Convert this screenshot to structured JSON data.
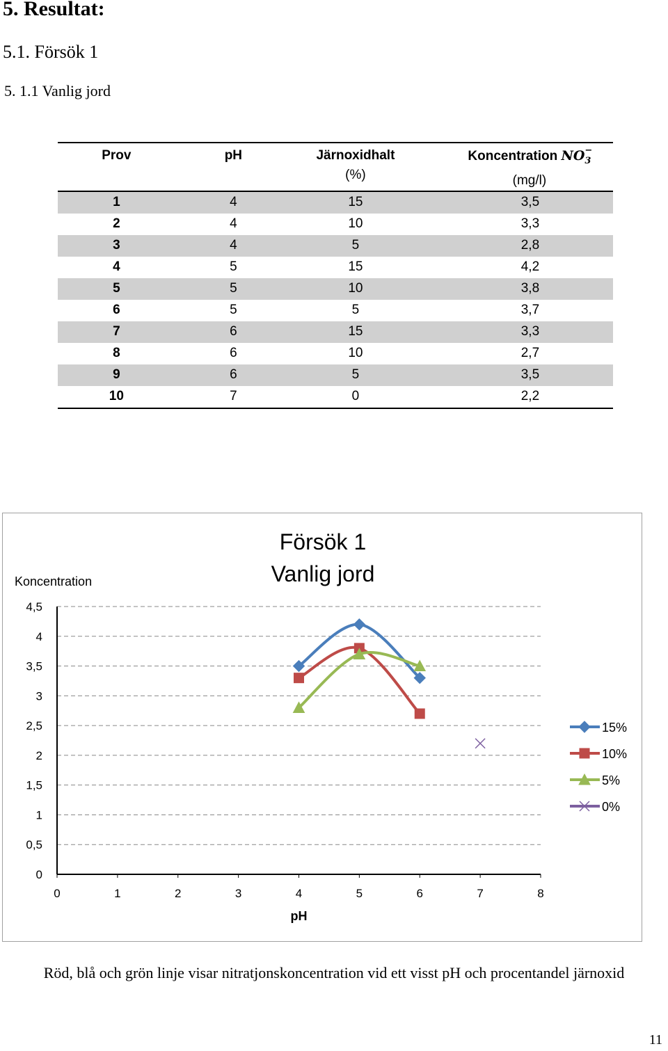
{
  "headings": {
    "h1": "5. Resultat:",
    "h2": "5.1. Försök 1",
    "h3": "5. 1.1 Vanlig jord"
  },
  "table": {
    "headers": [
      "Prov",
      "pH",
      "Järnoxidhalt",
      "Koncentration"
    ],
    "header_units": [
      "",
      "",
      "(%)",
      "(mg/l)"
    ],
    "header_formula": "NO",
    "header_formula_sup": "−",
    "header_formula_sub": "3",
    "rows": [
      [
        "1",
        "4",
        "15",
        "3,5"
      ],
      [
        "2",
        "4",
        "10",
        "3,3"
      ],
      [
        "3",
        "4",
        "5",
        "2,8"
      ],
      [
        "4",
        "5",
        "15",
        "4,2"
      ],
      [
        "5",
        "5",
        "10",
        "3,8"
      ],
      [
        "6",
        "5",
        "5",
        "3,7"
      ],
      [
        "7",
        "6",
        "15",
        "3,3"
      ],
      [
        "8",
        "6",
        "10",
        "2,7"
      ],
      [
        "9",
        "6",
        "5",
        "3,5"
      ],
      [
        "10",
        "7",
        "0",
        "2,2"
      ]
    ]
  },
  "chart_data": {
    "type": "line",
    "title_lines": [
      "Försök 1",
      "Vanlig jord"
    ],
    "xlabel": "pH",
    "ylabel": "Koncentration",
    "xlim": [
      0,
      8
    ],
    "ylim": [
      0,
      4.5
    ],
    "x_ticks": [
      "0",
      "1",
      "2",
      "3",
      "4",
      "5",
      "6",
      "7",
      "8"
    ],
    "y_ticks": [
      "0",
      "0,5",
      "1",
      "1,5",
      "2",
      "2,5",
      "3",
      "3,5",
      "4",
      "4,5"
    ],
    "grid": "horizontal dashed",
    "legend_position": "right",
    "series": [
      {
        "name": "15%",
        "color": "#4a7ebb",
        "marker": "diamond",
        "points": [
          [
            4,
            3.5
          ],
          [
            5,
            4.2
          ],
          [
            6,
            3.3
          ]
        ]
      },
      {
        "name": "10%",
        "color": "#be4b48",
        "marker": "square",
        "points": [
          [
            4,
            3.3
          ],
          [
            5,
            3.8
          ],
          [
            6,
            2.7
          ]
        ]
      },
      {
        "name": "5%",
        "color": "#98b954",
        "marker": "triangle",
        "points": [
          [
            4,
            2.8
          ],
          [
            5,
            3.7
          ],
          [
            6,
            3.5
          ]
        ]
      },
      {
        "name": "0%",
        "color": "#7d60a0",
        "marker": "x",
        "points": [
          [
            7,
            2.2
          ]
        ]
      }
    ]
  },
  "caption": "Röd, blå och grön linje visar nitratjonskoncentration vid ett visst pH och procentandel järnoxid",
  "page_number": "11"
}
